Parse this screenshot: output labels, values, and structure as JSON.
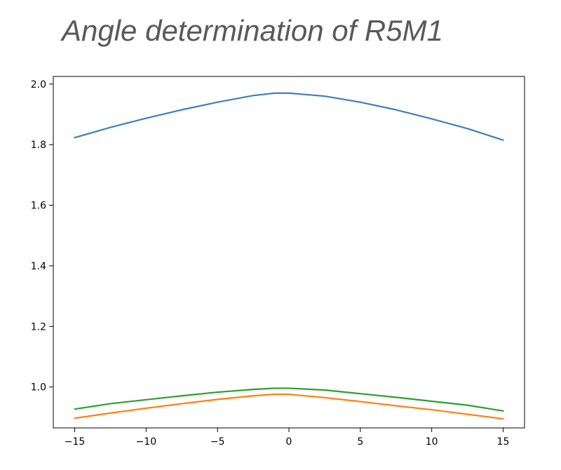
{
  "title": "Angle determination of R5M1",
  "chart_data": {
    "type": "line",
    "title": "Angle determination of R5M1",
    "xlabel": "",
    "ylabel": "",
    "xlim": [
      -16.5,
      16.5
    ],
    "ylim": [
      0.865,
      2.025
    ],
    "xticks": [
      -15,
      -10,
      -5,
      0,
      5,
      10,
      15
    ],
    "xtick_labels": [
      "−15",
      "−10",
      "−5",
      "0",
      "5",
      "10",
      "15"
    ],
    "yticks": [
      1.0,
      1.2,
      1.4,
      1.6,
      1.8,
      2.0
    ],
    "ytick_labels": [
      "1.0",
      "1.2",
      "1.4",
      "1.6",
      "1.8",
      "2.0"
    ],
    "grid": false,
    "legend": "none",
    "x": [
      -15,
      -12.5,
      -10,
      -7.5,
      -5,
      -2.5,
      -1,
      0,
      2.5,
      5,
      7.5,
      10,
      12.5,
      15
    ],
    "series": [
      {
        "color": "#3f7fbf",
        "values": [
          1.823,
          1.857,
          1.887,
          1.915,
          1.94,
          1.962,
          1.97,
          1.97,
          1.96,
          1.94,
          1.915,
          1.885,
          1.853,
          1.815
        ]
      },
      {
        "color": "#2ca02c",
        "values": [
          0.927,
          0.945,
          0.958,
          0.971,
          0.983,
          0.992,
          0.996,
          0.996,
          0.99,
          0.978,
          0.966,
          0.953,
          0.94,
          0.921
        ]
      },
      {
        "color": "#ff7f0e",
        "values": [
          0.897,
          0.914,
          0.93,
          0.945,
          0.959,
          0.971,
          0.976,
          0.976,
          0.965,
          0.952,
          0.938,
          0.925,
          0.91,
          0.895
        ]
      }
    ]
  }
}
